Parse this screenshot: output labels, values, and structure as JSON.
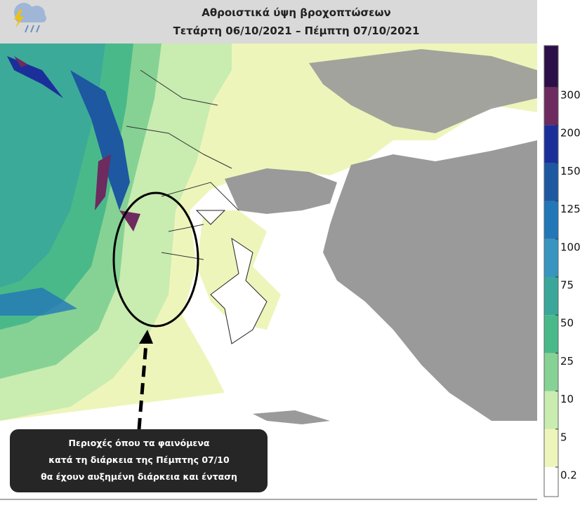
{
  "header": {
    "title": [
      "Αθροιστικά ύψη βροχοπτώσεων",
      "Τετάρτη 06/10/2021 – Πέμπτη 07/10/2021"
    ]
  },
  "colorbar": {
    "levels": [
      0.2,
      5,
      10,
      25,
      50,
      75,
      100,
      125,
      150,
      200,
      300
    ],
    "colors": [
      "#ffffff",
      "#eef5bb",
      "#c9ecb0",
      "#86d294",
      "#4ab98a",
      "#3aa79a",
      "#3795c0",
      "#2277b7",
      "#1d58a0",
      "#1b2f9b",
      "#6d2b5f",
      "#2c0f48"
    ]
  },
  "callout": {
    "lines": [
      "Περιοχές όπου τα φαινόμενα",
      "κατά τη διάρκεια της Πέμπτης 07/10",
      "θα έχουν αυξημένη διάρκεια και ένταση"
    ]
  }
}
